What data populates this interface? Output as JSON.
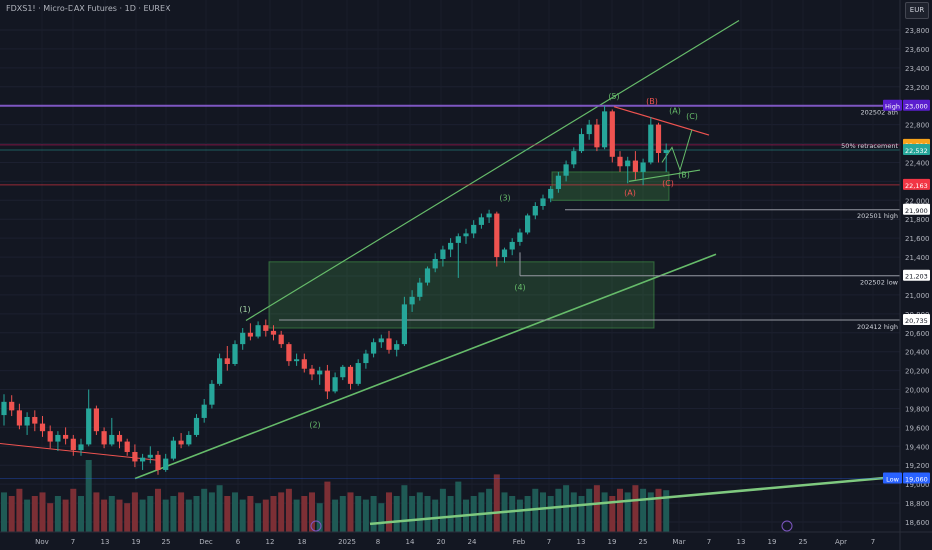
{
  "header": {
    "symbol_title": "FDXS1! · Micro-DAX Futures · 1D · EUREX",
    "currency_button": "EUR"
  },
  "chart_data": {
    "type": "candlestick",
    "y_axis": {
      "range": [
        18500,
        24000
      ],
      "ticks": [
        23800,
        23600,
        23400,
        23200,
        23000,
        22800,
        22600,
        22400,
        22200,
        22000,
        21800,
        21600,
        21400,
        21200,
        21000,
        20800,
        20600,
        20400,
        20200,
        20000,
        19800,
        19600,
        19400,
        19200,
        19000,
        18800,
        18600
      ]
    },
    "x_axis": {
      "ticks": [
        "Nov",
        "7",
        "13",
        "19",
        "25",
        "Dec",
        "6",
        "12",
        "18",
        "2025",
        "8",
        "14",
        "20",
        "24",
        "Feb",
        "7",
        "13",
        "19",
        "25",
        "Mar",
        "7",
        "13",
        "19",
        "25",
        "Apr",
        "7",
        "13"
      ]
    },
    "price_labels": [
      {
        "value": "23,000",
        "color": "#5b1ecf",
        "tag": "High"
      },
      {
        "value": "22,586",
        "color": "#f7a21b"
      },
      {
        "value": "22,532",
        "color": "#26a69a"
      },
      {
        "value": "22,163",
        "color": "#f23645"
      },
      {
        "value": "21,900",
        "color": "#ffffff"
      },
      {
        "value": "21,203",
        "color": "#ffffff"
      },
      {
        "value": "20,735",
        "color": "#ffffff"
      },
      {
        "value": "19,060",
        "color": "#2962ff",
        "tag": "Low"
      }
    ],
    "level_labels": [
      "202502 ath",
      "50% retracement",
      "202501 high",
      "202502 low",
      "202412 high"
    ],
    "wave_labels": [
      "(1)",
      "(2)",
      "(3)",
      "(4)",
      "(5)",
      "(A)",
      "(B)",
      "(C)",
      "(A)",
      "(B)",
      "(C)"
    ],
    "candles": [
      [
        19730,
        19950,
        19620,
        19870
      ],
      [
        19870,
        19940,
        19720,
        19780
      ],
      [
        19780,
        19850,
        19580,
        19620
      ],
      [
        19620,
        19760,
        19520,
        19710
      ],
      [
        19710,
        19780,
        19560,
        19640
      ],
      [
        19640,
        19720,
        19500,
        19560
      ],
      [
        19560,
        19620,
        19380,
        19450
      ],
      [
        19450,
        19560,
        19350,
        19520
      ],
      [
        19520,
        19600,
        19420,
        19480
      ],
      [
        19480,
        19520,
        19300,
        19360
      ],
      [
        19360,
        19480,
        19300,
        19420
      ],
      [
        19420,
        20000,
        19400,
        19800
      ],
      [
        19800,
        19830,
        19520,
        19560
      ],
      [
        19560,
        19600,
        19380,
        19420
      ],
      [
        19420,
        19700,
        19400,
        19520
      ],
      [
        19520,
        19560,
        19380,
        19450
      ],
      [
        19450,
        19480,
        19300,
        19340
      ],
      [
        19340,
        19420,
        19180,
        19240
      ],
      [
        19240,
        19320,
        19150,
        19280
      ],
      [
        19280,
        19400,
        19220,
        19310
      ],
      [
        19310,
        19350,
        19100,
        19150
      ],
      [
        19150,
        19320,
        19130,
        19270
      ],
      [
        19270,
        19500,
        19250,
        19460
      ],
      [
        19460,
        19540,
        19380,
        19420
      ],
      [
        19420,
        19560,
        19400,
        19520
      ],
      [
        19520,
        19740,
        19500,
        19700
      ],
      [
        19700,
        19900,
        19650,
        19840
      ],
      [
        19840,
        20100,
        19800,
        20060
      ],
      [
        20060,
        20380,
        20040,
        20330
      ],
      [
        20330,
        20460,
        20200,
        20270
      ],
      [
        20270,
        20520,
        20250,
        20480
      ],
      [
        20480,
        20650,
        20420,
        20600
      ],
      [
        20600,
        20700,
        20520,
        20560
      ],
      [
        20560,
        20720,
        20540,
        20680
      ],
      [
        20680,
        20740,
        20560,
        20620
      ],
      [
        20620,
        20680,
        20520,
        20580
      ],
      [
        20580,
        20620,
        20440,
        20480
      ],
      [
        20480,
        20500,
        20250,
        20300
      ],
      [
        20300,
        20380,
        20250,
        20320
      ],
      [
        20320,
        20380,
        20180,
        20220
      ],
      [
        20220,
        20260,
        20100,
        20160
      ],
      [
        20160,
        20240,
        20050,
        20200
      ],
      [
        20200,
        20260,
        19900,
        19980
      ],
      [
        19980,
        20180,
        19960,
        20130
      ],
      [
        20130,
        20260,
        20100,
        20240
      ],
      [
        20240,
        20260,
        20000,
        20060
      ],
      [
        20060,
        20320,
        20040,
        20280
      ],
      [
        20280,
        20420,
        20220,
        20380
      ],
      [
        20380,
        20540,
        20340,
        20500
      ],
      [
        20500,
        20580,
        20440,
        20540
      ],
      [
        20540,
        20620,
        20380,
        20420
      ],
      [
        20420,
        20520,
        20350,
        20480
      ],
      [
        20480,
        20980,
        20460,
        20900
      ],
      [
        20900,
        21050,
        20820,
        20980
      ],
      [
        20980,
        21180,
        20940,
        21130
      ],
      [
        21130,
        21300,
        21100,
        21280
      ],
      [
        21280,
        21440,
        21240,
        21380
      ],
      [
        21380,
        21520,
        21300,
        21480
      ],
      [
        21480,
        21600,
        21400,
        21550
      ],
      [
        21550,
        21650,
        21180,
        21620
      ],
      [
        21620,
        21700,
        21540,
        21650
      ],
      [
        21650,
        21790,
        21600,
        21740
      ],
      [
        21740,
        21860,
        21700,
        21820
      ],
      [
        21820,
        21900,
        21760,
        21860
      ],
      [
        21860,
        21880,
        21300,
        21400
      ],
      [
        21400,
        21500,
        21340,
        21480
      ],
      [
        21480,
        21600,
        21420,
        21560
      ],
      [
        21560,
        21700,
        21520,
        21660
      ],
      [
        21660,
        21860,
        21640,
        21840
      ],
      [
        21840,
        21980,
        21800,
        21940
      ],
      [
        21940,
        22060,
        21900,
        22020
      ],
      [
        22020,
        22150,
        21980,
        22120
      ],
      [
        22120,
        22300,
        22080,
        22260
      ],
      [
        22260,
        22420,
        22200,
        22380
      ],
      [
        22380,
        22560,
        22340,
        22520
      ],
      [
        22520,
        22760,
        22500,
        22700
      ],
      [
        22700,
        22850,
        22640,
        22800
      ],
      [
        22800,
        22860,
        22520,
        22560
      ],
      [
        22560,
        23000,
        22540,
        22940
      ],
      [
        22940,
        22960,
        22400,
        22460
      ],
      [
        22460,
        22520,
        22300,
        22360
      ],
      [
        22360,
        22460,
        22180,
        22420
      ],
      [
        22420,
        22520,
        22220,
        22300
      ],
      [
        22300,
        22440,
        22160,
        22400
      ],
      [
        22400,
        22880,
        22380,
        22800
      ],
      [
        22800,
        22820,
        22400,
        22500
      ],
      [
        22500,
        22600,
        22300,
        22532
      ]
    ],
    "volumes": [
      0.55,
      0.5,
      0.6,
      0.45,
      0.5,
      0.55,
      0.4,
      0.5,
      0.45,
      0.6,
      0.5,
      1.0,
      0.55,
      0.45,
      0.5,
      0.45,
      0.4,
      0.55,
      0.45,
      0.5,
      0.6,
      0.45,
      0.5,
      0.55,
      0.45,
      0.5,
      0.6,
      0.55,
      0.65,
      0.5,
      0.55,
      0.45,
      0.5,
      0.4,
      0.45,
      0.5,
      0.55,
      0.6,
      0.45,
      0.5,
      0.55,
      0.4,
      0.7,
      0.45,
      0.5,
      0.55,
      0.5,
      0.45,
      0.5,
      0.4,
      0.55,
      0.5,
      0.65,
      0.5,
      0.55,
      0.5,
      0.45,
      0.6,
      0.5,
      0.7,
      0.45,
      0.5,
      0.55,
      0.6,
      0.8,
      0.55,
      0.5,
      0.45,
      0.5,
      0.6,
      0.55,
      0.5,
      0.6,
      0.65,
      0.55,
      0.5,
      0.6,
      0.65,
      0.55,
      0.5,
      0.6,
      0.55,
      0.65,
      0.6,
      0.55,
      0.6,
      0.58
    ]
  }
}
